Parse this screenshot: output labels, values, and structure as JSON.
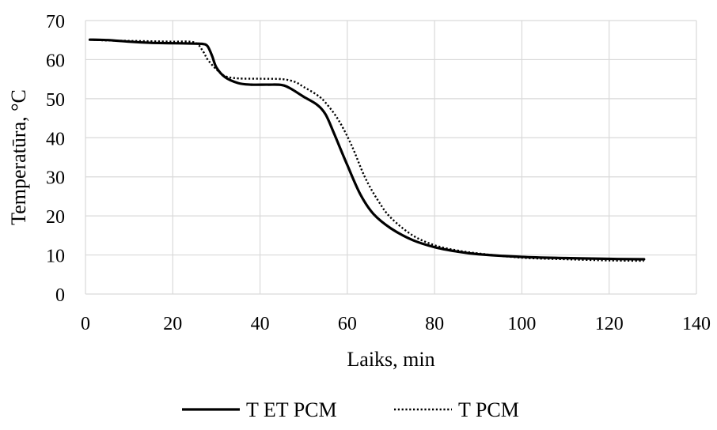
{
  "chart_data": {
    "type": "line",
    "title": "",
    "xlabel": "Laiks, min",
    "ylabel": "Temperatūra, °C",
    "xlim": [
      0,
      140
    ],
    "ylim": [
      0,
      70
    ],
    "xticks": [
      0,
      20,
      40,
      60,
      80,
      100,
      120,
      140
    ],
    "yticks": [
      0,
      10,
      20,
      30,
      40,
      50,
      60,
      70
    ],
    "x_tick_labels": [
      "0",
      "20",
      "40",
      "60",
      "80",
      "100",
      "120",
      "140"
    ],
    "y_tick_labels": [
      "0",
      "10",
      "20",
      "30",
      "40",
      "50",
      "60",
      "70"
    ],
    "grid": true,
    "legend_position": "bottom",
    "series": [
      {
        "name": "T  ET  PCM",
        "style": "solid",
        "color": "#000000",
        "points": [
          [
            1,
            65.1
          ],
          [
            5,
            65.0
          ],
          [
            10,
            64.6
          ],
          [
            15,
            64.3
          ],
          [
            20,
            64.2
          ],
          [
            25,
            64.1
          ],
          [
            27,
            64.0
          ],
          [
            28,
            63.4
          ],
          [
            29,
            61.0
          ],
          [
            30,
            58.0
          ],
          [
            32,
            55.5
          ],
          [
            35,
            54.0
          ],
          [
            38,
            53.6
          ],
          [
            42,
            53.6
          ],
          [
            45,
            53.5
          ],
          [
            47,
            52.6
          ],
          [
            50,
            50.5
          ],
          [
            53,
            48.5
          ],
          [
            55,
            46.0
          ],
          [
            57,
            41.0
          ],
          [
            60,
            33.0
          ],
          [
            63,
            25.5
          ],
          [
            66,
            20.5
          ],
          [
            70,
            16.8
          ],
          [
            75,
            13.8
          ],
          [
            80,
            12.0
          ],
          [
            85,
            10.9
          ],
          [
            90,
            10.2
          ],
          [
            100,
            9.5
          ],
          [
            110,
            9.2
          ],
          [
            120,
            9.0
          ],
          [
            128,
            8.9
          ]
        ]
      },
      {
        "name": "T  PCM",
        "style": "dotted",
        "color": "#000000",
        "points": [
          [
            1,
            65.1
          ],
          [
            5,
            64.9
          ],
          [
            10,
            64.8
          ],
          [
            15,
            64.7
          ],
          [
            20,
            64.6
          ],
          [
            25,
            64.4
          ],
          [
            27,
            62.0
          ],
          [
            28,
            60.0
          ],
          [
            30,
            57.5
          ],
          [
            32,
            55.8
          ],
          [
            35,
            55.2
          ],
          [
            40,
            55.1
          ],
          [
            45,
            55.0
          ],
          [
            48,
            54.3
          ],
          [
            50,
            53.0
          ],
          [
            53,
            51.0
          ],
          [
            55,
            49.0
          ],
          [
            58,
            44.5
          ],
          [
            61,
            38.0
          ],
          [
            64,
            30.0
          ],
          [
            67,
            24.0
          ],
          [
            70,
            19.5
          ],
          [
            75,
            15.0
          ],
          [
            80,
            12.5
          ],
          [
            85,
            11.2
          ],
          [
            90,
            10.4
          ],
          [
            100,
            9.3
          ],
          [
            110,
            8.9
          ],
          [
            120,
            8.6
          ],
          [
            128,
            8.5
          ]
        ]
      }
    ]
  }
}
